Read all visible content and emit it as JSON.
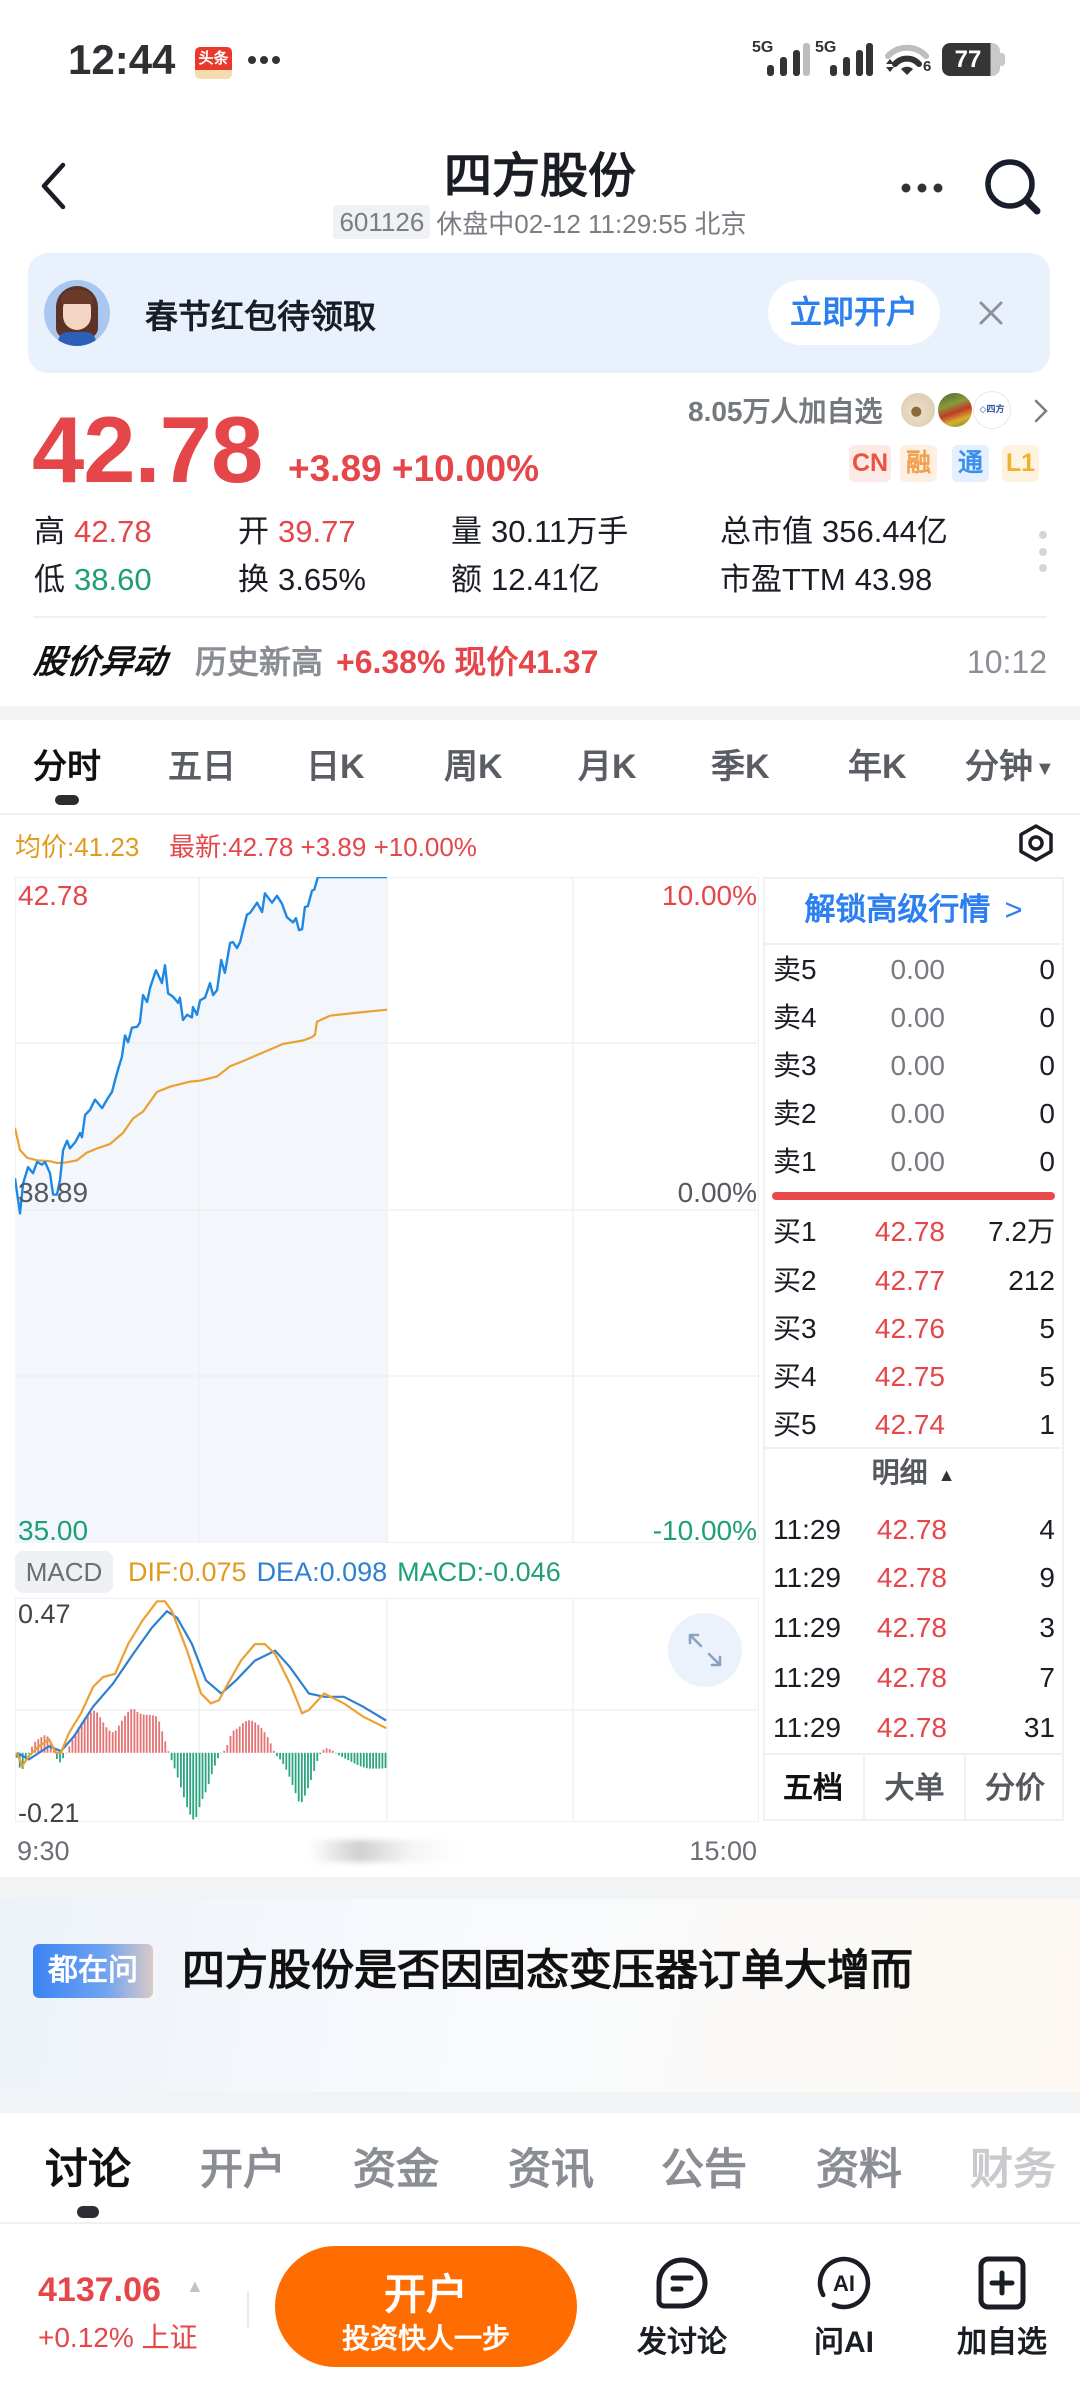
{
  "status_bar": {
    "time": "12:44",
    "app_badge": "头条",
    "sim1": "5G",
    "sim2": "5G",
    "wifi_standard": "6",
    "battery": "77"
  },
  "header": {
    "title": "四方股份",
    "code": "601126",
    "market_status": "休盘中02-12 11:29:55 北京",
    "icons": [
      "chevron-left-icon",
      "more-icon",
      "search-icon"
    ]
  },
  "banner": {
    "text": "春节红包待领取",
    "button": "立即开户",
    "close_icon": "close-icon"
  },
  "quote": {
    "price": "42.78",
    "change": "+3.89",
    "change_pct": "+10.00%",
    "followers": "8.05万人加自选",
    "badges": [
      {
        "label": "CN",
        "color": "#e8553f",
        "bg": "#fde9e6"
      },
      {
        "label": "融",
        "color": "#f0a04f",
        "bg": "#fdf0e3"
      },
      {
        "label": "通",
        "color": "#3a8ef0",
        "bg": "#e4f0fd"
      },
      {
        "label": "L1",
        "color": "#f0b030",
        "bg": "#fdf3df"
      }
    ],
    "stats": [
      {
        "label": "高",
        "value": "42.78"
      },
      {
        "label": "开",
        "value": "39.77"
      },
      {
        "label": "量",
        "value": "30.11万手"
      },
      {
        "label": "总市值",
        "value": "356.44亿"
      },
      {
        "label": "低",
        "value": "38.60"
      },
      {
        "label": "换",
        "value": "3.65%"
      },
      {
        "label": "额",
        "value": "12.41亿"
      },
      {
        "label": "市盈TTM",
        "value": "43.98"
      }
    ]
  },
  "alert": {
    "title": "股价异动",
    "tag": "历史新高",
    "detail": "+6.38% 现价41.37",
    "time": "10:12"
  },
  "chart_tabs": [
    {
      "label": "分时",
      "active": true
    },
    {
      "label": "五日"
    },
    {
      "label": "日K"
    },
    {
      "label": "周K"
    },
    {
      "label": "月K"
    },
    {
      "label": "季K"
    },
    {
      "label": "年K"
    },
    {
      "label": "分钟",
      "dropdown": true
    }
  ],
  "chart_header": {
    "avg": "均价:41.23",
    "latest": "最新:42.78",
    "change": "+3.89",
    "change_pct": "+10.00%"
  },
  "chart_axis": {
    "top_left": "42.78",
    "top_right": "10.00%",
    "mid_left": "38.89",
    "mid_right": "0.00%",
    "bottom_left": "35.00",
    "bottom_right": "-10.00%",
    "time_start": "9:30",
    "time_end": "15:00"
  },
  "macd": {
    "label": "MACD",
    "dif": "DIF:0.075",
    "dea": "DEA:0.098",
    "macd": "MACD:-0.046",
    "max": "0.47",
    "min": "-0.21"
  },
  "orderbook": {
    "unlock": "解锁高级行情",
    "asks": [
      {
        "label": "卖5",
        "price": "0.00",
        "volume": "0"
      },
      {
        "label": "卖4",
        "price": "0.00",
        "volume": "0"
      },
      {
        "label": "卖3",
        "price": "0.00",
        "volume": "0"
      },
      {
        "label": "卖2",
        "price": "0.00",
        "volume": "0"
      },
      {
        "label": "卖1",
        "price": "0.00",
        "volume": "0"
      }
    ],
    "bids": [
      {
        "label": "买1",
        "price": "42.78",
        "volume": "7.2万"
      },
      {
        "label": "买2",
        "price": "42.77",
        "volume": "212"
      },
      {
        "label": "买3",
        "price": "42.76",
        "volume": "5"
      },
      {
        "label": "买4",
        "price": "42.75",
        "volume": "5"
      },
      {
        "label": "买5",
        "price": "42.74",
        "volume": "1"
      }
    ],
    "ticks_title": "明细",
    "ticks": [
      {
        "time": "11:29",
        "price": "42.78",
        "volume": "4"
      },
      {
        "time": "11:29",
        "price": "42.78",
        "volume": "9"
      },
      {
        "time": "11:29",
        "price": "42.78",
        "volume": "3"
      },
      {
        "time": "11:29",
        "price": "42.78",
        "volume": "7"
      },
      {
        "time": "11:29",
        "price": "42.78",
        "volume": "31"
      }
    ],
    "tabs": [
      {
        "label": "五档",
        "active": true
      },
      {
        "label": "大单"
      },
      {
        "label": "分价"
      }
    ]
  },
  "news": {
    "badge": "都在问",
    "title": "四方股份是否因固态变压器订单大增而"
  },
  "section_tabs": [
    {
      "label": "讨论",
      "active": true
    },
    {
      "label": "开户"
    },
    {
      "label": "资金"
    },
    {
      "label": "资讯"
    },
    {
      "label": "公告"
    },
    {
      "label": "资料"
    },
    {
      "label": "财务"
    }
  ],
  "bottom_bar": {
    "index_value": "4137.06",
    "index_change": "+0.12%",
    "index_name": "上证",
    "cta_title": "开户",
    "cta_subtitle": "投资快人一步",
    "actions": [
      {
        "label": "发讨论",
        "icon": "comment-icon"
      },
      {
        "label": "问AI",
        "icon": "ai-icon"
      },
      {
        "label": "加自选",
        "icon": "add-watchlist-icon"
      }
    ]
  },
  "colors": {
    "up": "#e5464a",
    "down": "#1f9e78",
    "accent_blue": "#2b7ff0",
    "cta_orange": "#ff6c00",
    "price_line": "#1e88e5",
    "avg_line": "#eba032",
    "banner_bg": "#e9f1fd"
  },
  "chart_data": {
    "type": "line",
    "title": "分时",
    "x_unit": "minutes since 9:30 (240 = 15:00)",
    "x_range": [
      0,
      240
    ],
    "x_ticks": [
      "9:30",
      "15:00"
    ],
    "price_axis": {
      "min": 35.0,
      "max": 42.78,
      "prev_close": 38.89,
      "labels_left": [
        "42.78",
        "38.89",
        "35.00"
      ],
      "labels_right": [
        "10.00%",
        "0.00%",
        "-10.00%"
      ]
    },
    "grid": true,
    "series": [
      {
        "name": "最新",
        "color": "#1e88e5",
        "points": [
          [
            0,
            39.26
          ],
          [
            1.6,
            38.85
          ],
          [
            2.6,
            39.2
          ],
          [
            4.2,
            39.39
          ],
          [
            5.8,
            39.32
          ],
          [
            7.1,
            39.45
          ],
          [
            8.7,
            39.42
          ],
          [
            9.7,
            39.45
          ],
          [
            11.3,
            39.32
          ],
          [
            12.3,
            39.07
          ],
          [
            13.5,
            39.07
          ],
          [
            14.5,
            39.24
          ],
          [
            15.5,
            39.59
          ],
          [
            16.8,
            39.7
          ],
          [
            17.7,
            39.61
          ],
          [
            19.4,
            39.68
          ],
          [
            21,
            39.79
          ],
          [
            21.6,
            39.74
          ],
          [
            22.6,
            40.0
          ],
          [
            24.2,
            40.06
          ],
          [
            25.8,
            40.18
          ],
          [
            28.1,
            40.08
          ],
          [
            30,
            40.2
          ],
          [
            31.3,
            40.27
          ],
          [
            32.9,
            40.49
          ],
          [
            34.5,
            40.68
          ],
          [
            35.5,
            40.93
          ],
          [
            36.5,
            40.85
          ],
          [
            37.7,
            41.02
          ],
          [
            39.4,
            41.03
          ],
          [
            40.3,
            41.08
          ],
          [
            41.3,
            41.4
          ],
          [
            42.6,
            41.32
          ],
          [
            43.6,
            41.49
          ],
          [
            45.5,
            41.69
          ],
          [
            47.4,
            41.54
          ],
          [
            48.4,
            41.75
          ],
          [
            49.4,
            41.42
          ],
          [
            51,
            41.38
          ],
          [
            52.6,
            41.31
          ],
          [
            53.2,
            41.37
          ],
          [
            54.2,
            41.11
          ],
          [
            55.5,
            41.17
          ],
          [
            57.1,
            41.14
          ],
          [
            57.4,
            41.26
          ],
          [
            58.7,
            41.17
          ],
          [
            59.7,
            41.34
          ],
          [
            61.3,
            41.37
          ],
          [
            62.9,
            41.54
          ],
          [
            63.9,
            41.4
          ],
          [
            65.2,
            41.46
          ],
          [
            66.5,
            41.81
          ],
          [
            67.7,
            41.66
          ],
          [
            69.4,
            42.01
          ],
          [
            70.3,
            42.02
          ],
          [
            71.6,
            41.95
          ],
          [
            72.6,
            42.02
          ],
          [
            74.8,
            42.34
          ],
          [
            75.8,
            42.36
          ],
          [
            78.1,
            42.48
          ],
          [
            79.7,
            42.37
          ],
          [
            80.6,
            42.59
          ],
          [
            82.9,
            42.48
          ],
          [
            84.5,
            42.56
          ],
          [
            86.1,
            42.47
          ],
          [
            87.7,
            42.31
          ],
          [
            89.7,
            42.25
          ],
          [
            90.6,
            42.3
          ],
          [
            91.6,
            42.16
          ],
          [
            92.6,
            42.17
          ],
          [
            93.5,
            42.43
          ],
          [
            94.5,
            42.44
          ],
          [
            95.8,
            42.62
          ],
          [
            96.5,
            42.63
          ],
          [
            97.7,
            42.78
          ],
          [
            120,
            42.78
          ]
        ]
      },
      {
        "name": "均价",
        "color": "#eba032",
        "points": [
          [
            0,
            39.85
          ],
          [
            1.6,
            39.59
          ],
          [
            3.9,
            39.5
          ],
          [
            7.1,
            39.47
          ],
          [
            11.3,
            39.46
          ],
          [
            13.5,
            39.44
          ],
          [
            15.5,
            39.44
          ],
          [
            20,
            39.47
          ],
          [
            23.2,
            39.56
          ],
          [
            26.5,
            39.61
          ],
          [
            30.6,
            39.66
          ],
          [
            34.8,
            39.79
          ],
          [
            38.1,
            39.96
          ],
          [
            41.3,
            40.04
          ],
          [
            45.8,
            40.27
          ],
          [
            50,
            40.33
          ],
          [
            56.5,
            40.39
          ],
          [
            59.7,
            40.4
          ],
          [
            65.2,
            40.45
          ],
          [
            69.4,
            40.57
          ],
          [
            73.6,
            40.63
          ],
          [
            80,
            40.73
          ],
          [
            86.5,
            40.83
          ],
          [
            92.9,
            40.87
          ],
          [
            95.8,
            40.91
          ],
          [
            96.8,
            40.94
          ],
          [
            97.4,
            41.09
          ],
          [
            101.6,
            41.16
          ],
          [
            109,
            41.19
          ],
          [
            120,
            41.23
          ]
        ]
      }
    ],
    "macd": {
      "range": [
        -0.21,
        0.47
      ],
      "dif_color": "#eba032",
      "dea_color": "#2f80d0",
      "up_color": "#e57373",
      "down_color": "#2aa57f",
      "dif": [
        [
          0.6,
          0.0
        ],
        [
          2.3,
          -0.04
        ],
        [
          4.5,
          -0.01
        ],
        [
          7.7,
          0.02
        ],
        [
          11,
          0.04
        ],
        [
          13.2,
          0.0
        ],
        [
          14.8,
          0.0
        ],
        [
          17.4,
          0.06
        ],
        [
          21.3,
          0.12
        ],
        [
          25.2,
          0.2
        ],
        [
          28.4,
          0.23
        ],
        [
          32.3,
          0.24
        ],
        [
          36.5,
          0.33
        ],
        [
          41,
          0.4
        ],
        [
          45.8,
          0.46
        ],
        [
          48.4,
          0.46
        ],
        [
          50.6,
          0.43
        ],
        [
          55.5,
          0.31
        ],
        [
          60,
          0.18
        ],
        [
          63.2,
          0.15
        ],
        [
          65.8,
          0.16
        ],
        [
          68.1,
          0.2
        ],
        [
          72.9,
          0.28
        ],
        [
          77.4,
          0.33
        ],
        [
          80.6,
          0.33
        ],
        [
          83.9,
          0.3
        ],
        [
          88.7,
          0.21
        ],
        [
          92.6,
          0.12
        ],
        [
          94.8,
          0.13
        ],
        [
          99.7,
          0.18
        ],
        [
          106.1,
          0.15
        ],
        [
          112.3,
          0.11
        ],
        [
          119.7,
          0.075
        ]
      ],
      "dea": [
        [
          0.6,
          0.0
        ],
        [
          4.5,
          -0.02
        ],
        [
          11,
          0.02
        ],
        [
          14.8,
          0.005
        ],
        [
          19,
          0.05
        ],
        [
          25.2,
          0.14
        ],
        [
          31.6,
          0.21
        ],
        [
          38.1,
          0.3
        ],
        [
          44.2,
          0.38
        ],
        [
          49,
          0.43
        ],
        [
          52.3,
          0.41
        ],
        [
          57.1,
          0.33
        ],
        [
          61.6,
          0.22
        ],
        [
          66.5,
          0.18
        ],
        [
          71.3,
          0.22
        ],
        [
          77.4,
          0.28
        ],
        [
          83.9,
          0.31
        ],
        [
          88.7,
          0.26
        ],
        [
          94.8,
          0.18
        ],
        [
          99.7,
          0.17
        ],
        [
          106.1,
          0.17
        ],
        [
          112.3,
          0.14
        ],
        [
          119.7,
          0.098
        ]
      ],
      "hist": [
        [
          0,
          0
        ],
        [
          2,
          -0.06
        ],
        [
          4,
          -0.015
        ],
        [
          6,
          0.03
        ],
        [
          8,
          0.045
        ],
        [
          10,
          0.056
        ],
        [
          12,
          0.03
        ],
        [
          14,
          -0.035
        ],
        [
          16,
          -0.01
        ],
        [
          18,
          0.03
        ],
        [
          20,
          0.07
        ],
        [
          22,
          0.1
        ],
        [
          24,
          0.12
        ],
        [
          26,
          0.13
        ],
        [
          28,
          0.1
        ],
        [
          30,
          0.07
        ],
        [
          32,
          0.06
        ],
        [
          34,
          0.09
        ],
        [
          36,
          0.12
        ],
        [
          38,
          0.137
        ],
        [
          40,
          0.12
        ],
        [
          42,
          0.115
        ],
        [
          44,
          0.115
        ],
        [
          46,
          0.11
        ],
        [
          48,
          0.05
        ],
        [
          50,
          -0.01
        ],
        [
          52,
          -0.06
        ],
        [
          54,
          -0.12
        ],
        [
          56,
          -0.18
        ],
        [
          58,
          -0.21
        ],
        [
          60,
          -0.15
        ],
        [
          62,
          -0.11
        ],
        [
          64,
          -0.05
        ],
        [
          66,
          -0.005
        ],
        [
          68,
          0.01
        ],
        [
          70,
          0.065
        ],
        [
          72,
          0.075
        ],
        [
          74,
          0.095
        ],
        [
          76,
          0.1
        ],
        [
          78,
          0.09
        ],
        [
          80,
          0.07
        ],
        [
          82,
          0.04
        ],
        [
          84,
          -0.005
        ],
        [
          86,
          -0.025
        ],
        [
          88,
          -0.06
        ],
        [
          90,
          -0.11
        ],
        [
          92,
          -0.16
        ],
        [
          94,
          -0.12
        ],
        [
          96,
          -0.07
        ],
        [
          98,
          -0.01
        ],
        [
          100,
          0.015
        ],
        [
          102,
          0.01
        ],
        [
          104,
          -0.005
        ],
        [
          106,
          -0.015
        ],
        [
          108,
          -0.025
        ],
        [
          110,
          -0.035
        ],
        [
          112,
          -0.043
        ],
        [
          114,
          -0.048
        ],
        [
          116,
          -0.048
        ],
        [
          118,
          -0.048
        ],
        [
          120,
          -0.046
        ]
      ]
    }
  }
}
